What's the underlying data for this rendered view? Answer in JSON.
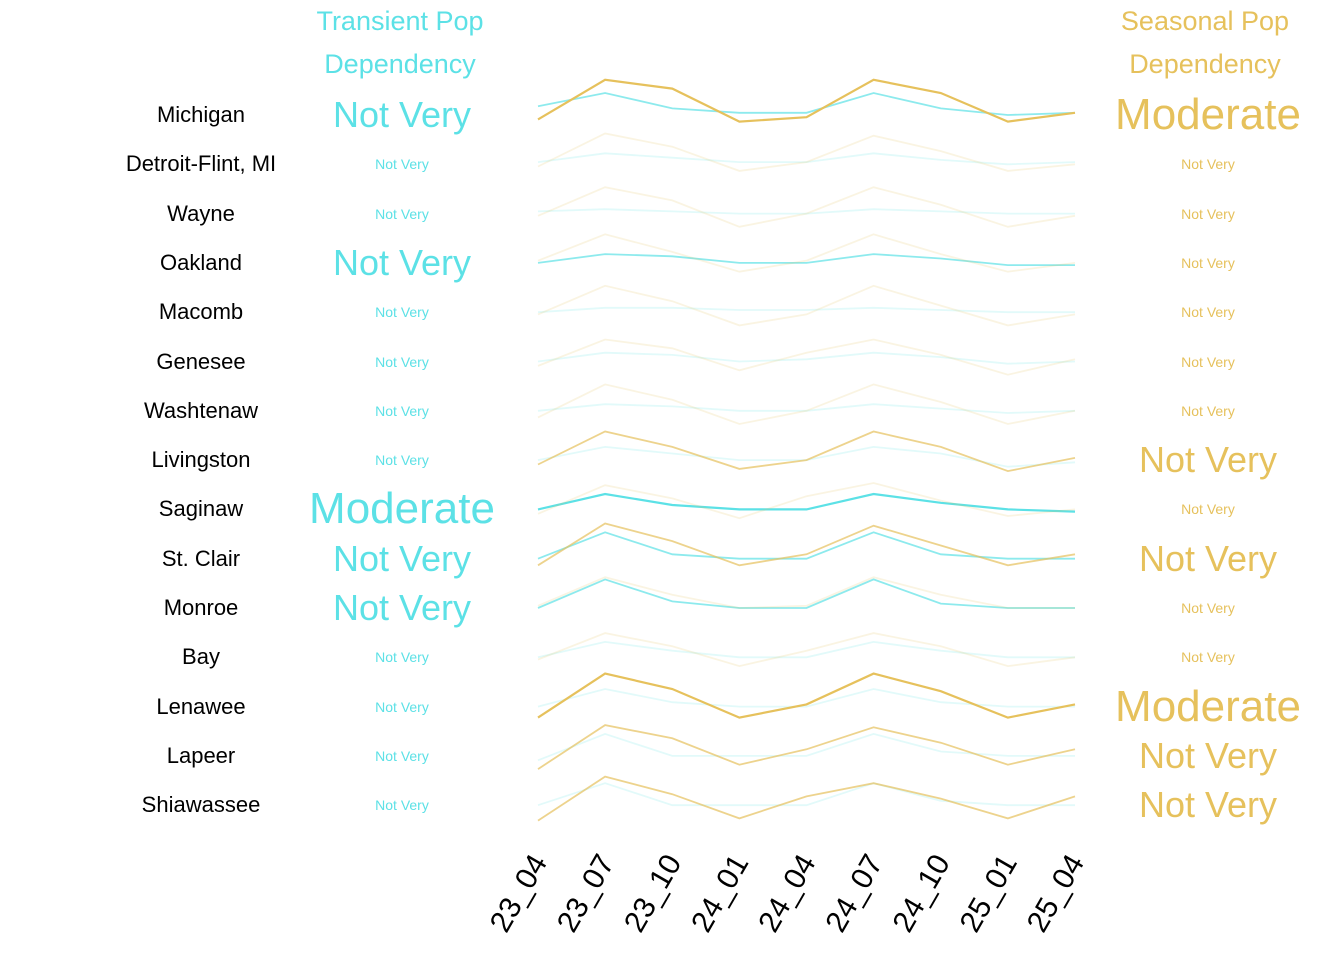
{
  "header": {
    "left_line1": "Transient Pop",
    "left_line2": "Dependency",
    "right_line1": "Seasonal Pop",
    "right_line2": "Dependency"
  },
  "colors": {
    "transient": "#5ce1e6",
    "seasonal": "#e6c15c"
  },
  "chart_data": {
    "type": "line",
    "title": "",
    "xlabel": "",
    "ylabel": "",
    "categories": [
      "23_04",
      "23_07",
      "23_10",
      "24_01",
      "24_04",
      "24_07",
      "24_10",
      "25_01",
      "25_04"
    ],
    "legend": [
      "Transient Pop Dependency",
      "Seasonal Pop Dependency"
    ],
    "rows": [
      {
        "name": "Michigan",
        "transient_label": "Not Very",
        "seasonal_label": "Moderate",
        "transient_emphasis": 1,
        "seasonal_emphasis": 2,
        "transient": [
          0.4,
          1.0,
          0.3,
          0.1,
          0.1,
          1.0,
          0.3,
          0.0,
          0.1
        ],
        "seasonal": [
          -0.2,
          1.6,
          1.2,
          -0.3,
          -0.1,
          1.6,
          1.0,
          -0.3,
          0.1
        ]
      },
      {
        "name": "Detroit-Flint, MI",
        "transient_label": "Not Very",
        "seasonal_label": "Not Very",
        "transient_emphasis": 0,
        "seasonal_emphasis": 0,
        "transient": [
          0.1,
          0.5,
          0.3,
          0.1,
          0.1,
          0.5,
          0.2,
          0.0,
          0.1
        ],
        "seasonal": [
          -0.1,
          1.4,
          0.8,
          -0.3,
          0.1,
          1.3,
          0.6,
          -0.3,
          0.0
        ]
      },
      {
        "name": "Wayne",
        "transient_label": "Not Very",
        "seasonal_label": "Not Very",
        "transient_emphasis": 0,
        "seasonal_emphasis": 0,
        "transient": [
          0.1,
          0.2,
          0.1,
          0.0,
          0.0,
          0.2,
          0.1,
          0.0,
          0.0
        ],
        "seasonal": [
          -0.1,
          1.2,
          0.6,
          -0.6,
          0.0,
          1.2,
          0.4,
          -0.6,
          -0.1
        ]
      },
      {
        "name": "Oakland",
        "transient_label": "Not Very",
        "seasonal_label": "Not Very",
        "transient_emphasis": 1,
        "seasonal_emphasis": 0,
        "transient": [
          0.0,
          0.4,
          0.3,
          0.0,
          0.0,
          0.4,
          0.2,
          -0.1,
          -0.1
        ],
        "seasonal": [
          0.1,
          1.3,
          0.5,
          -0.4,
          0.1,
          1.3,
          0.4,
          -0.4,
          0.0
        ]
      },
      {
        "name": "Macomb",
        "transient_label": "Not Very",
        "seasonal_label": "Not Very",
        "transient_emphasis": 0,
        "seasonal_emphasis": 0,
        "transient": [
          0.0,
          0.2,
          0.2,
          0.1,
          0.1,
          0.2,
          0.1,
          0.0,
          0.0
        ],
        "seasonal": [
          -0.1,
          1.2,
          0.5,
          -0.6,
          -0.1,
          1.2,
          0.3,
          -0.6,
          -0.1
        ]
      },
      {
        "name": "Genesee",
        "transient_label": "Not Very",
        "seasonal_label": "Not Very",
        "transient_emphasis": 0,
        "seasonal_emphasis": 0,
        "transient": [
          0.0,
          0.4,
          0.3,
          0.0,
          0.1,
          0.4,
          0.2,
          -0.1,
          0.0
        ],
        "seasonal": [
          -0.2,
          1.0,
          0.6,
          -0.4,
          0.4,
          1.0,
          0.3,
          -0.6,
          0.1
        ]
      },
      {
        "name": "Washtenaw",
        "transient_label": "Not Very",
        "seasonal_label": "Not Very",
        "transient_emphasis": 0,
        "seasonal_emphasis": 0,
        "transient": [
          0.0,
          0.3,
          0.2,
          0.0,
          0.0,
          0.3,
          0.1,
          -0.1,
          0.0
        ],
        "seasonal": [
          -0.3,
          1.2,
          0.5,
          -0.6,
          0.0,
          1.2,
          0.4,
          -0.6,
          0.0
        ]
      },
      {
        "name": "Livingston",
        "transient_label": "Not Very",
        "seasonal_label": "Not Very",
        "transient_emphasis": 0,
        "seasonal_emphasis": 1,
        "transient": [
          0.0,
          0.6,
          0.3,
          0.0,
          0.0,
          0.6,
          0.3,
          -0.3,
          -0.1
        ],
        "seasonal": [
          -0.2,
          1.3,
          0.6,
          -0.4,
          0.0,
          1.3,
          0.6,
          -0.5,
          0.1
        ]
      },
      {
        "name": "Saginaw",
        "transient_label": "Moderate",
        "seasonal_label": "Not Very",
        "transient_emphasis": 2,
        "seasonal_emphasis": 0,
        "transient": [
          0.0,
          0.7,
          0.2,
          0.0,
          0.0,
          0.7,
          0.3,
          0.0,
          -0.1
        ],
        "seasonal": [
          -0.2,
          1.1,
          0.5,
          -0.4,
          0.6,
          1.2,
          0.4,
          -0.3,
          0.0
        ]
      },
      {
        "name": "St. Clair",
        "transient_label": "Not Very",
        "seasonal_label": "Not Very",
        "transient_emphasis": 1,
        "seasonal_emphasis": 1,
        "transient": [
          0.0,
          1.2,
          0.2,
          0.0,
          0.0,
          1.2,
          0.2,
          0.0,
          0.0
        ],
        "seasonal": [
          -0.3,
          1.6,
          0.8,
          -0.3,
          0.2,
          1.5,
          0.6,
          -0.3,
          0.2
        ]
      },
      {
        "name": "Monroe",
        "transient_label": "Not Very",
        "seasonal_label": "Not Very",
        "transient_emphasis": 1,
        "seasonal_emphasis": 0,
        "transient": [
          0.0,
          1.3,
          0.3,
          0.0,
          0.0,
          1.3,
          0.2,
          0.0,
          0.0
        ],
        "seasonal": [
          0.1,
          1.4,
          0.6,
          0.0,
          0.1,
          1.4,
          0.6,
          0.0,
          0.0
        ]
      },
      {
        "name": "Bay",
        "transient_label": "Not Very",
        "seasonal_label": "Not Very",
        "transient_emphasis": 0,
        "seasonal_emphasis": 0,
        "transient": [
          0.0,
          0.7,
          0.3,
          0.0,
          0.0,
          0.7,
          0.3,
          0.0,
          0.0
        ],
        "seasonal": [
          -0.1,
          1.1,
          0.5,
          -0.4,
          0.3,
          1.1,
          0.5,
          -0.4,
          0.0
        ]
      },
      {
        "name": "Lenawee",
        "transient_label": "Not Very",
        "seasonal_label": "Moderate",
        "transient_emphasis": 0,
        "seasonal_emphasis": 2,
        "transient": [
          0.0,
          0.8,
          0.2,
          0.0,
          0.0,
          0.8,
          0.2,
          0.0,
          0.0
        ],
        "seasonal": [
          -0.5,
          1.5,
          0.8,
          -0.5,
          0.1,
          1.5,
          0.7,
          -0.5,
          0.1
        ]
      },
      {
        "name": "Lapeer",
        "transient_label": "Not Very",
        "seasonal_label": "Not Very",
        "transient_emphasis": 0,
        "seasonal_emphasis": 1,
        "transient": [
          -0.2,
          1.0,
          0.0,
          0.0,
          0.0,
          1.0,
          0.2,
          0.0,
          0.0
        ],
        "seasonal": [
          -0.6,
          1.4,
          0.8,
          -0.4,
          0.3,
          1.3,
          0.6,
          -0.4,
          0.3
        ]
      },
      {
        "name": "Shiawassee",
        "transient_label": "Not Very",
        "seasonal_label": "Not Very",
        "transient_emphasis": 0,
        "seasonal_emphasis": 1,
        "transient": [
          0.0,
          1.0,
          0.0,
          0.0,
          0.0,
          1.0,
          0.2,
          0.0,
          0.0
        ],
        "seasonal": [
          -0.7,
          1.3,
          0.5,
          -0.6,
          0.4,
          1.0,
          0.3,
          -0.6,
          0.4
        ]
      }
    ]
  }
}
